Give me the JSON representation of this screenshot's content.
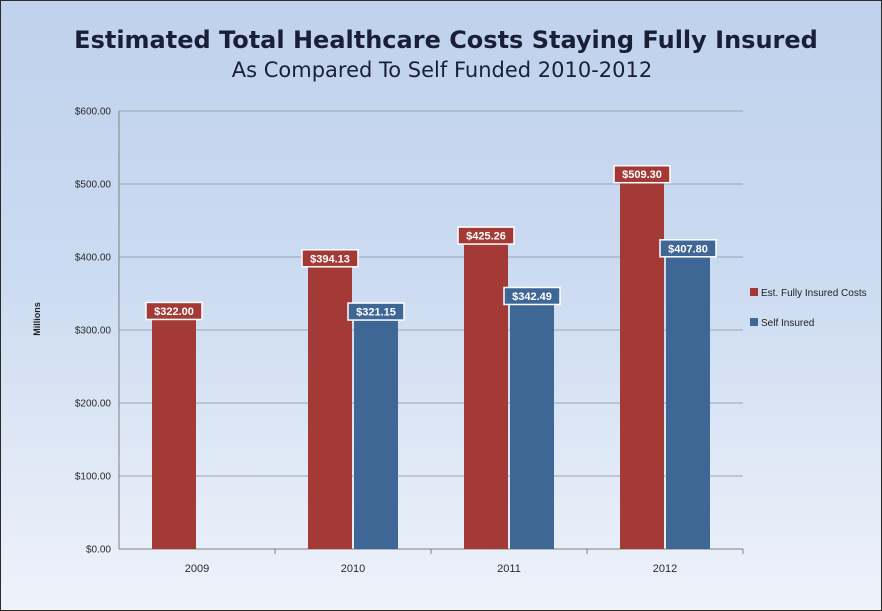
{
  "chart_data": {
    "type": "bar",
    "title": "Estimated Total Healthcare Costs Staying Fully Insured",
    "subtitle": "As Compared To Self Funded 2010-2012",
    "ylabel": "Millions",
    "xlabel": "",
    "categories": [
      "2009",
      "2010",
      "2011",
      "2012"
    ],
    "ylim": [
      0,
      600
    ],
    "yticks": [
      "$0.00",
      "$100.00",
      "$200.00",
      "$300.00",
      "$400.00",
      "$500.00",
      "$600.00"
    ],
    "grid": true,
    "legend_position": "right",
    "series": [
      {
        "name": "Est. Fully Insured Costs",
        "color": "#a33a36",
        "values": [
          322.0,
          394.13,
          425.26,
          509.3
        ],
        "labels": [
          "$322.00",
          "$394.13",
          "$425.26",
          "$509.30"
        ]
      },
      {
        "name": "Self Insured",
        "color": "#3f6796",
        "values": [
          null,
          321.15,
          342.49,
          407.8
        ],
        "labels": [
          "",
          "$321.15",
          "$342.49",
          "$407.80"
        ]
      }
    ]
  }
}
